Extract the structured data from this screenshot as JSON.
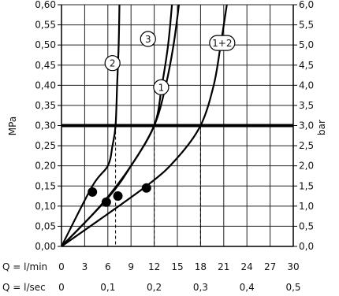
{
  "chart_data": {
    "type": "line",
    "xlim": [
      0,
      30
    ],
    "ylim": [
      0,
      0.6
    ],
    "grid": true,
    "y_left": {
      "label": "MPa",
      "ticks": [
        "0,00",
        "0,05",
        "0,10",
        "0,15",
        "0,20",
        "0,25",
        "0,30",
        "0,35",
        "0,40",
        "0,45",
        "0,50",
        "0,55",
        "0,60"
      ]
    },
    "y_right": {
      "label": "bar",
      "ticks": [
        "0,0",
        "0,5",
        "1,0",
        "1,5",
        "2,0",
        "2,5",
        "3,0",
        "3,5",
        "4,0",
        "4,5",
        "5,0",
        "5,5",
        "6,0"
      ]
    },
    "x_rows": [
      {
        "label": "Q = l/min",
        "values": [
          0,
          3,
          6,
          9,
          12,
          15,
          18,
          21,
          24,
          27,
          30
        ],
        "ticks": [
          "0",
          "3",
          "6",
          "9",
          "12",
          "15",
          "18",
          "21",
          "24",
          "27",
          "30"
        ]
      },
      {
        "label": "Q = l/sec",
        "values": [
          0,
          6,
          12,
          18,
          24,
          30
        ],
        "ticks": [
          "0",
          "0,1",
          "0,2",
          "0,3",
          "0,4",
          "0,5"
        ]
      }
    ],
    "reference_line": {
      "y": 0.3
    },
    "series": [
      {
        "name": "1",
        "points": [
          [
            0,
            0
          ],
          [
            5,
            0.1
          ],
          [
            9,
            0.2
          ],
          [
            12,
            0.3
          ],
          [
            13.5,
            0.4
          ],
          [
            14.5,
            0.5
          ],
          [
            15.2,
            0.6
          ]
        ]
      },
      {
        "name": "2",
        "points": [
          [
            0,
            0
          ],
          [
            4,
            0.15
          ],
          [
            6,
            0.2
          ],
          [
            6.6,
            0.25
          ],
          [
            7,
            0.3
          ],
          [
            7.2,
            0.4
          ],
          [
            7.4,
            0.5
          ],
          [
            7.5,
            0.6
          ]
        ]
      },
      {
        "name": "3",
        "points": [
          [
            0,
            0
          ],
          [
            6,
            0.12
          ],
          [
            9,
            0.2
          ],
          [
            12,
            0.3
          ],
          [
            13,
            0.4
          ],
          [
            13.8,
            0.5
          ],
          [
            14.3,
            0.6
          ]
        ]
      },
      {
        "name": "1+2",
        "points": [
          [
            0,
            0
          ],
          [
            11,
            0.15
          ],
          [
            15,
            0.22
          ],
          [
            18,
            0.3
          ],
          [
            19.7,
            0.4
          ],
          [
            20.6,
            0.5
          ],
          [
            21.4,
            0.6
          ]
        ]
      }
    ],
    "markers": [
      [
        4,
        0.135
      ],
      [
        5.8,
        0.11
      ],
      [
        7.3,
        0.125
      ],
      [
        11,
        0.145
      ]
    ],
    "dashed_drops": [
      7,
      12,
      18
    ],
    "labels": [
      {
        "text": "2",
        "x": 6.6,
        "y": 0.455
      },
      {
        "text": "3",
        "x": 11.2,
        "y": 0.515
      },
      {
        "text": "1",
        "x": 12.9,
        "y": 0.395
      },
      {
        "text": "1+2",
        "x": 20.8,
        "y": 0.505
      }
    ]
  }
}
